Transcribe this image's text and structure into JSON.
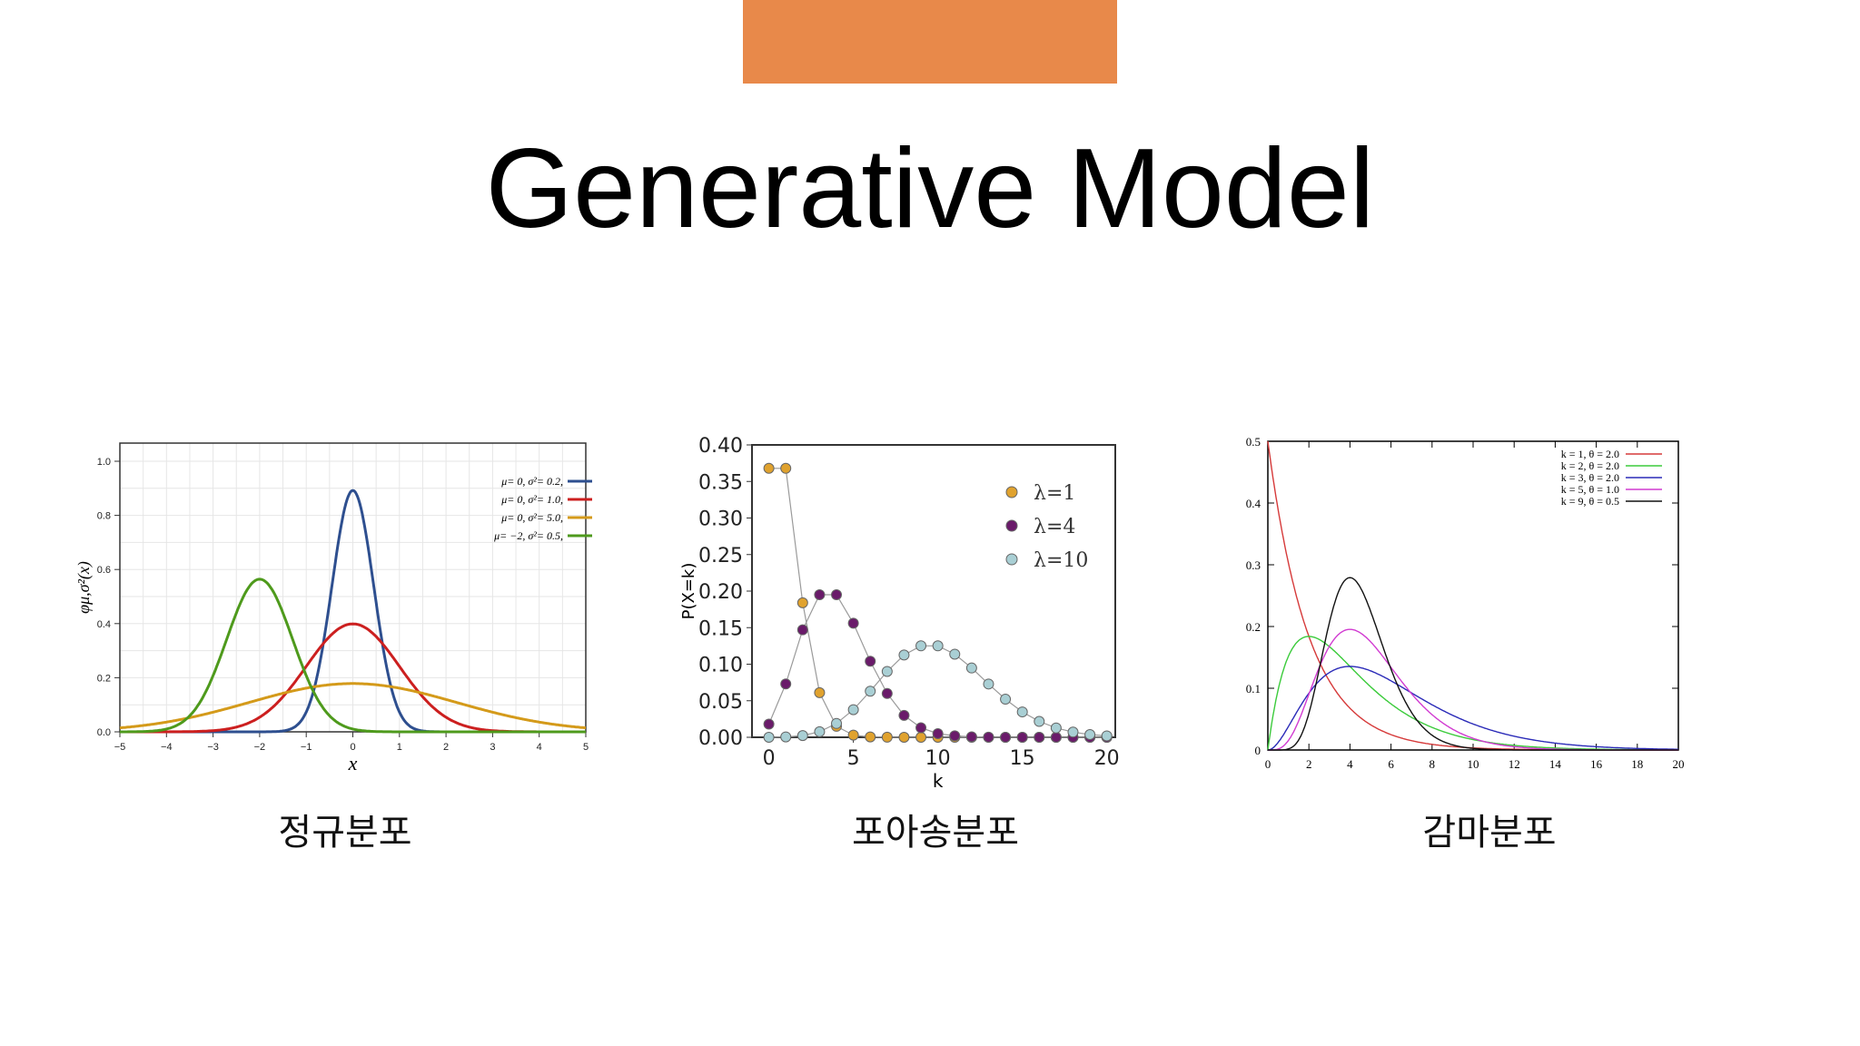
{
  "slide": {
    "title": "Generative Model",
    "accent_color": "#E8894A",
    "captions": [
      "정규분포",
      "포아송분포",
      "감마분포"
    ]
  },
  "chart_data": [
    {
      "type": "line",
      "xlabel": "x",
      "ylabel": "φμ,σ²(x)",
      "xlim": [
        -5,
        5
      ],
      "ylim": [
        0,
        1.0
      ],
      "xticks": [
        -5,
        -4,
        -3,
        -2,
        -1,
        0,
        1,
        2,
        3,
        4,
        5
      ],
      "yticks": [
        0.0,
        0.2,
        0.4,
        0.6,
        0.8,
        1.0
      ],
      "grid": true,
      "legend_position": "top-right",
      "series": [
        {
          "name": "μ= 0,   σ²= 0.2,",
          "mu": 0,
          "var": 0.2,
          "color": "#2E4F8F"
        },
        {
          "name": "μ= 0,   σ²= 1.0,",
          "mu": 0,
          "var": 1.0,
          "color": "#CC1F1F"
        },
        {
          "name": "μ= 0,   σ²= 5.0,",
          "mu": 0,
          "var": 5.0,
          "color": "#D49A1A"
        },
        {
          "name": "μ= −2,  σ²= 0.5,",
          "mu": -2,
          "var": 0.5,
          "color": "#4E9A1C"
        }
      ]
    },
    {
      "type": "scatter",
      "xlabel": "k",
      "ylabel": "P(X=k)",
      "xlim": [
        -1,
        20.5
      ],
      "ylim": [
        0,
        0.4
      ],
      "xticks": [
        0,
        5,
        10,
        15,
        20
      ],
      "yticks": [
        "0.00",
        "0.05",
        "0.10",
        "0.15",
        "0.20",
        "0.25",
        "0.30",
        "0.35",
        "0.40"
      ],
      "legend_position": "top-right",
      "series": [
        {
          "name": "λ=1",
          "lambda": 1,
          "color": "#E0A22E",
          "x": [
            0,
            1,
            2,
            3,
            4,
            5,
            6,
            7,
            8,
            9,
            10,
            11,
            12,
            13,
            14,
            15,
            16,
            17,
            18,
            19,
            20
          ],
          "values": [
            0.368,
            0.368,
            0.184,
            0.061,
            0.015,
            0.003,
            0.0005,
            0.0001,
            0,
            0,
            0,
            0,
            0,
            0,
            0,
            0,
            0,
            0,
            0,
            0,
            0
          ]
        },
        {
          "name": "λ=4",
          "lambda": 4,
          "color": "#6A1B6A",
          "x": [
            0,
            1,
            2,
            3,
            4,
            5,
            6,
            7,
            8,
            9,
            10,
            11,
            12,
            13,
            14,
            15,
            16,
            17,
            18,
            19,
            20
          ],
          "values": [
            0.018,
            0.073,
            0.147,
            0.195,
            0.195,
            0.156,
            0.104,
            0.06,
            0.03,
            0.013,
            0.005,
            0.002,
            0.0006,
            0.0002,
            0,
            0,
            0,
            0,
            0,
            0,
            0
          ]
        },
        {
          "name": "λ=10",
          "lambda": 10,
          "color": "#A9CFD4",
          "x": [
            0,
            1,
            2,
            3,
            4,
            5,
            6,
            7,
            8,
            9,
            10,
            11,
            12,
            13,
            14,
            15,
            16,
            17,
            18,
            19,
            20
          ],
          "values": [
            0.0,
            0.0005,
            0.0023,
            0.0076,
            0.0189,
            0.0378,
            0.0631,
            0.0901,
            0.1126,
            0.1251,
            0.1251,
            0.1137,
            0.0948,
            0.0729,
            0.0521,
            0.0347,
            0.0217,
            0.0128,
            0.0071,
            0.0037,
            0.0019
          ]
        }
      ]
    },
    {
      "type": "line",
      "xlim": [
        0,
        20
      ],
      "ylim": [
        0,
        0.5
      ],
      "xticks": [
        0,
        2,
        4,
        6,
        8,
        10,
        12,
        14,
        16,
        18,
        20
      ],
      "yticks": [
        "0",
        "0.1",
        "0.2",
        "0.3",
        "0.4",
        "0.5"
      ],
      "legend_position": "top-right",
      "series": [
        {
          "name": "k = 1, θ = 2.0",
          "k": 1,
          "theta": 2.0,
          "color": "#D63A3A"
        },
        {
          "name": "k = 2, θ = 2.0",
          "k": 2,
          "theta": 2.0,
          "color": "#3BCB3B"
        },
        {
          "name": "k = 3, θ = 2.0",
          "k": 3,
          "theta": 2.0,
          "color": "#2B2BB8"
        },
        {
          "name": "k = 5, θ = 1.0",
          "k": 5,
          "theta": 1.0,
          "color": "#D13BD1"
        },
        {
          "name": "k = 9, θ = 0.5",
          "k": 9,
          "theta": 0.5,
          "color": "#111111"
        }
      ]
    }
  ]
}
